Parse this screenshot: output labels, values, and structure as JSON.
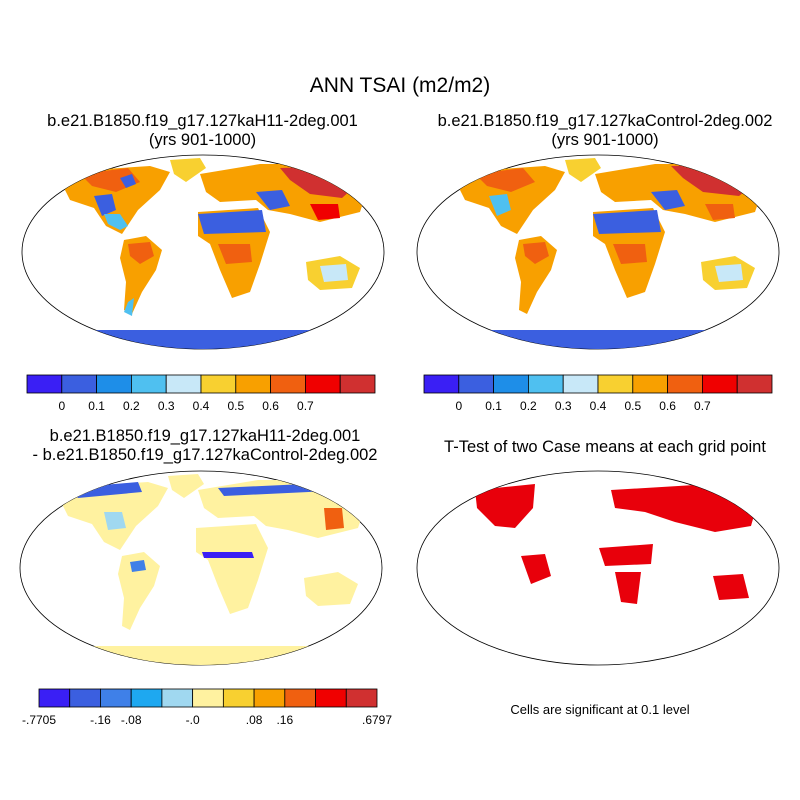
{
  "title": "ANN TSAI (m2/m2)",
  "panels": [
    {
      "title_line1": "b.e21.B1850.f19_g17.127kaH11-2deg.001",
      "title_line2": "(yrs 901-1000)"
    },
    {
      "title_line1": "b.e21.B1850.f19_g17.127kaControl-2deg.002",
      "title_line2": "(yrs 901-1000)"
    },
    {
      "title_line1": "b.e21.B1850.f19_g17.127kaH11-2deg.001",
      "title_line2": "- b.e21.B1850.f19_g17.127kaControl-2deg.002"
    },
    {
      "title_line1": "T-Test of two Case means at each grid point",
      "title_line2": ""
    }
  ],
  "colorbars": {
    "absolute": {
      "colors": [
        "#3a1ff5",
        "#3b5fe0",
        "#1e8ee8",
        "#4fc0f0",
        "#c8e8f8",
        "#f8d030",
        "#f8a000",
        "#f06010",
        "#f00000",
        "#d03030"
      ],
      "labels": [
        "0",
        "0.1",
        "0.2",
        "0.3",
        "0.4",
        "0.5",
        "0.6",
        "0.7"
      ]
    },
    "difference": {
      "colors": [
        "#3a1ff5",
        "#3b5fe0",
        "#3f80e8",
        "#1ea8f0",
        "#a0d8f0",
        "#fff2a0",
        "#f8d030",
        "#f8a000",
        "#f06010",
        "#f00000",
        "#d03030"
      ],
      "labels": [
        "-.7705",
        "-.16",
        "-.08",
        "-.0",
        ".08",
        ".16",
        ".6797"
      ]
    }
  },
  "significance": {
    "color": "#e8000b",
    "note": "Cells are significant at 0.1 level"
  }
}
